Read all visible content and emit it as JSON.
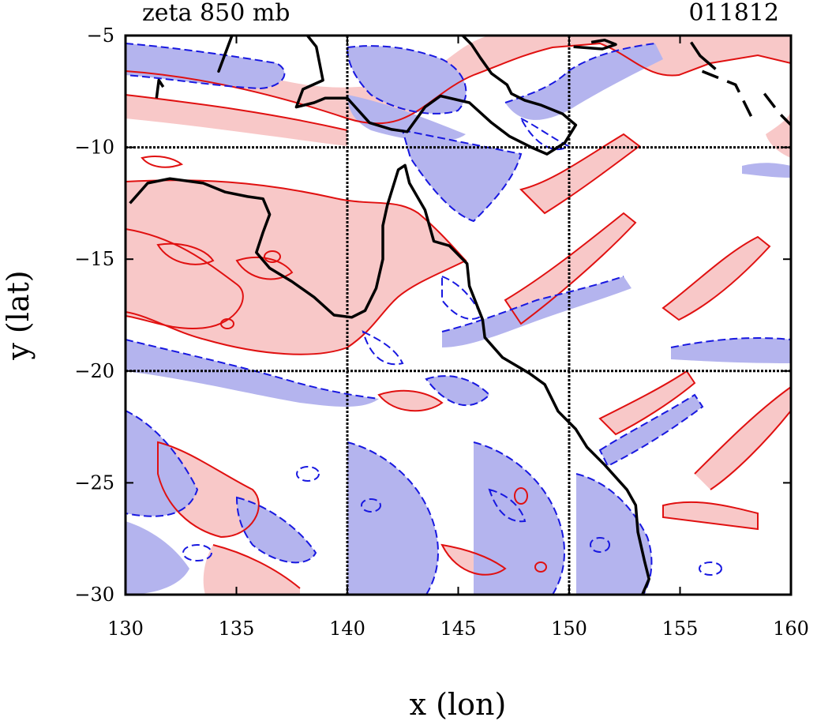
{
  "title_left": "zeta 850 mb",
  "title_right": "011812",
  "xaxis": {
    "label": "x (lon)",
    "range": [
      130,
      160
    ],
    "ticks": [
      130,
      135,
      140,
      145,
      150,
      155,
      160
    ],
    "tick_labels": [
      "130",
      "135",
      "140",
      "145",
      "150",
      "155",
      "160"
    ]
  },
  "yaxis": {
    "label": "y (lat)",
    "range": [
      -30,
      -5
    ],
    "ticks": [
      -5,
      -10,
      -15,
      -20,
      -25,
      -30
    ],
    "tick_labels": [
      "−5",
      "−10",
      "−15",
      "−20",
      "−25",
      "−30"
    ]
  },
  "grid_lines": {
    "lon": [
      140,
      150
    ],
    "lat": [
      -10,
      -20
    ]
  },
  "colors": {
    "positive_fill": "#f8c8c8",
    "positive_contour": "#e01010",
    "negative_fill": "#b4b4ee",
    "negative_contour": "#1818e0",
    "coastline": "#000000",
    "grid": "#000000"
  },
  "legend": "none",
  "coastline": [
    [
      [
        130.2,
        -12.5
      ],
      [
        131.0,
        -11.6
      ],
      [
        132.0,
        -11.4
      ],
      [
        133.5,
        -11.6
      ],
      [
        134.5,
        -12.0
      ],
      [
        135.5,
        -12.2
      ],
      [
        136.2,
        -12.3
      ],
      [
        136.5,
        -13.0
      ],
      [
        136.2,
        -13.8
      ],
      [
        135.9,
        -14.7
      ],
      [
        136.5,
        -15.4
      ],
      [
        137.5,
        -16.0
      ],
      [
        138.5,
        -16.7
      ],
      [
        139.4,
        -17.5
      ],
      [
        140.2,
        -17.6
      ],
      [
        140.8,
        -17.3
      ],
      [
        141.3,
        -16.3
      ],
      [
        141.6,
        -15.0
      ],
      [
        141.6,
        -13.5
      ],
      [
        141.8,
        -12.6
      ],
      [
        142.3,
        -11.0
      ],
      [
        142.6,
        -10.8
      ],
      [
        142.8,
        -11.6
      ],
      [
        143.5,
        -12.8
      ],
      [
        143.9,
        -14.2
      ],
      [
        144.6,
        -14.4
      ],
      [
        145.4,
        -15.2
      ],
      [
        145.5,
        -16.2
      ],
      [
        146.1,
        -17.7
      ],
      [
        146.2,
        -18.5
      ],
      [
        147.0,
        -19.4
      ],
      [
        148.2,
        -20.1
      ],
      [
        148.9,
        -20.6
      ],
      [
        149.5,
        -21.8
      ],
      [
        150.3,
        -22.6
      ],
      [
        150.8,
        -23.4
      ],
      [
        151.6,
        -24.2
      ],
      [
        152.6,
        -25.3
      ],
      [
        153.0,
        -26.0
      ],
      [
        153.1,
        -27.2
      ],
      [
        153.4,
        -28.5
      ],
      [
        153.6,
        -29.3
      ],
      [
        153.3,
        -30.0
      ]
    ],
    [
      [
        138.2,
        -5.0
      ],
      [
        138.6,
        -5.5
      ],
      [
        138.9,
        -7.0
      ],
      [
        138.0,
        -7.4
      ],
      [
        137.7,
        -8.2
      ],
      [
        138.5,
        -8.0
      ],
      [
        139.0,
        -7.8
      ],
      [
        140.0,
        -7.8
      ],
      [
        141.0,
        -8.9
      ],
      [
        142.0,
        -9.2
      ],
      [
        142.7,
        -9.3
      ],
      [
        143.5,
        -8.2
      ],
      [
        144.2,
        -7.7
      ],
      [
        145.5,
        -8.0
      ],
      [
        146.5,
        -8.9
      ],
      [
        147.3,
        -9.5
      ],
      [
        148.3,
        -10.0
      ],
      [
        149.0,
        -10.3
      ],
      [
        149.8,
        -9.8
      ],
      [
        150.3,
        -9.0
      ],
      [
        149.7,
        -8.5
      ],
      [
        148.7,
        -8.1
      ],
      [
        148.0,
        -7.9
      ],
      [
        147.4,
        -7.6
      ],
      [
        147.2,
        -7.2
      ],
      [
        146.5,
        -6.7
      ],
      [
        146.0,
        -6.0
      ],
      [
        145.6,
        -5.4
      ],
      [
        145.2,
        -5.0
      ]
    ],
    [
      [
        134.8,
        -5.0
      ],
      [
        134.5,
        -5.8
      ],
      [
        134.2,
        -6.6
      ],
      [
        134.5,
        -5.8
      ]
    ],
    [
      [
        131.4,
        -7.8
      ],
      [
        131.5,
        -7.0
      ],
      [
        131.7,
        -7.3
      ]
    ],
    [
      [
        150.2,
        -5.5
      ],
      [
        151.5,
        -5.6
      ],
      [
        152.1,
        -5.4
      ],
      [
        151.6,
        -5.2
      ],
      [
        151.0,
        -5.3
      ]
    ],
    [
      [
        155.5,
        -5.3
      ],
      [
        155.9,
        -5.9
      ],
      [
        156.6,
        -6.5
      ]
    ]
  ],
  "dashed_boundary": [
    [
      156.0,
      -6.6
    ],
    [
      157.5,
      -7.2
    ],
    [
      158.3,
      -8.8
    ]
  ],
  "dashed_boundary_2": [
    [
      158.8,
      -7.6
    ],
    [
      159.5,
      -8.5
    ],
    [
      160.0,
      -9.0
    ]
  ]
}
